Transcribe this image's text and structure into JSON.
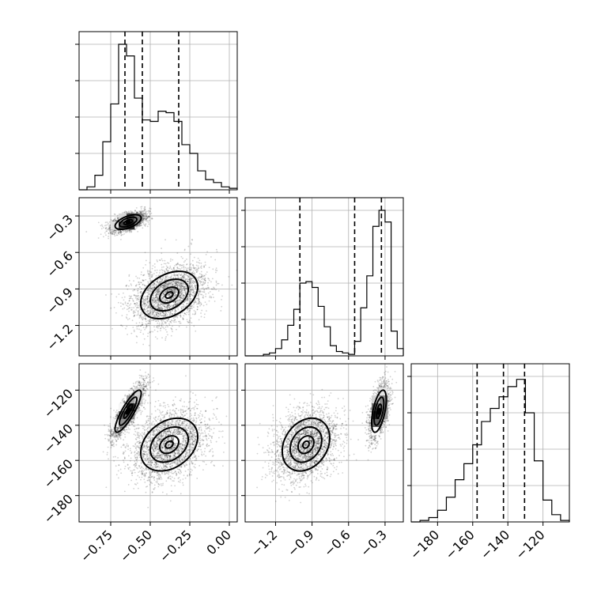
{
  "chart_data": {
    "type": "corner",
    "grid": true,
    "parameters": [
      {
        "range": [
          -0.95,
          0.05
        ],
        "ticks": [
          -0.75,
          -0.5,
          -0.25,
          0.0
        ],
        "tick_labels": [
          "−0.75",
          "−0.50",
          "−0.25",
          "0.00"
        ],
        "quantiles": [
          -0.66,
          -0.55,
          -0.32
        ],
        "hist_edges": [
          -0.95,
          -0.9,
          -0.85,
          -0.8,
          -0.75,
          -0.7,
          -0.65,
          -0.6,
          -0.55,
          -0.5,
          -0.45,
          -0.4,
          -0.35,
          -0.3,
          -0.25,
          -0.2,
          -0.15,
          -0.1,
          -0.05,
          0.0,
          0.05
        ],
        "hist_counts": [
          0.0,
          0.02,
          0.1,
          0.33,
          0.59,
          1.0,
          0.92,
          0.63,
          0.48,
          0.47,
          0.54,
          0.53,
          0.47,
          0.31,
          0.25,
          0.13,
          0.07,
          0.05,
          0.02,
          0.01
        ]
      },
      {
        "range": [
          -1.45,
          -0.15
        ],
        "ticks": [
          -1.2,
          -0.9,
          -0.6,
          -0.3
        ],
        "tick_labels": [
          "−1.2",
          "−0.9",
          "−0.6",
          "−0.3"
        ],
        "quantiles": [
          -1.0,
          -0.55,
          -0.33
        ],
        "hist_edges": [
          -1.45,
          -1.4,
          -1.35,
          -1.3,
          -1.25,
          -1.2,
          -1.15,
          -1.1,
          -1.05,
          -1.0,
          -0.95,
          -0.9,
          -0.85,
          -0.8,
          -0.75,
          -0.7,
          -0.65,
          -0.6,
          -0.55,
          -0.5,
          -0.45,
          -0.4,
          -0.35,
          -0.3,
          -0.25,
          -0.2,
          -0.15
        ],
        "hist_counts": [
          0.0,
          0.0,
          0.0,
          0.01,
          0.02,
          0.05,
          0.11,
          0.21,
          0.32,
          0.5,
          0.51,
          0.47,
          0.34,
          0.2,
          0.07,
          0.03,
          0.02,
          0.01,
          0.1,
          0.33,
          0.55,
          0.89,
          1.0,
          0.92,
          0.17,
          0.05
        ]
      },
      {
        "range": [
          -195,
          -105
        ],
        "ticks": [
          -180,
          -160,
          -140,
          -120
        ],
        "tick_labels": [
          "−180",
          "−160",
          "−140",
          "−120"
        ],
        "quantiles": [
          -157.5,
          -142.5,
          -130.5
        ],
        "hist_edges": [
          -195,
          -190,
          -185,
          -180,
          -175,
          -170,
          -165,
          -160,
          -155,
          -150,
          -145,
          -140,
          -135,
          -130,
          -125,
          -120,
          -115,
          -110,
          -105
        ],
        "hist_counts": [
          0.0,
          0.01,
          0.03,
          0.08,
          0.17,
          0.29,
          0.4,
          0.53,
          0.69,
          0.78,
          0.86,
          0.93,
          0.98,
          0.75,
          0.42,
          0.15,
          0.05,
          0.01
        ]
      }
    ],
    "modes": [
      {
        "weight": 0.42,
        "mean": [
          -0.64,
          -0.35,
          -132
        ],
        "sd": [
          0.055,
          0.04,
          8
        ],
        "rho": [
          0.55,
          0.85,
          0.55
        ]
      },
      {
        "weight": 0.58,
        "mean": [
          -0.38,
          -0.95,
          -151
        ],
        "sd": [
          0.12,
          0.13,
          10
        ],
        "rho": [
          0.35,
          0.3,
          0.25
        ]
      }
    ],
    "samples_per_panel": 4200,
    "contour_levels_sigma": [
      0.5,
      1.0,
      1.5
    ],
    "density_bins": 20
  }
}
